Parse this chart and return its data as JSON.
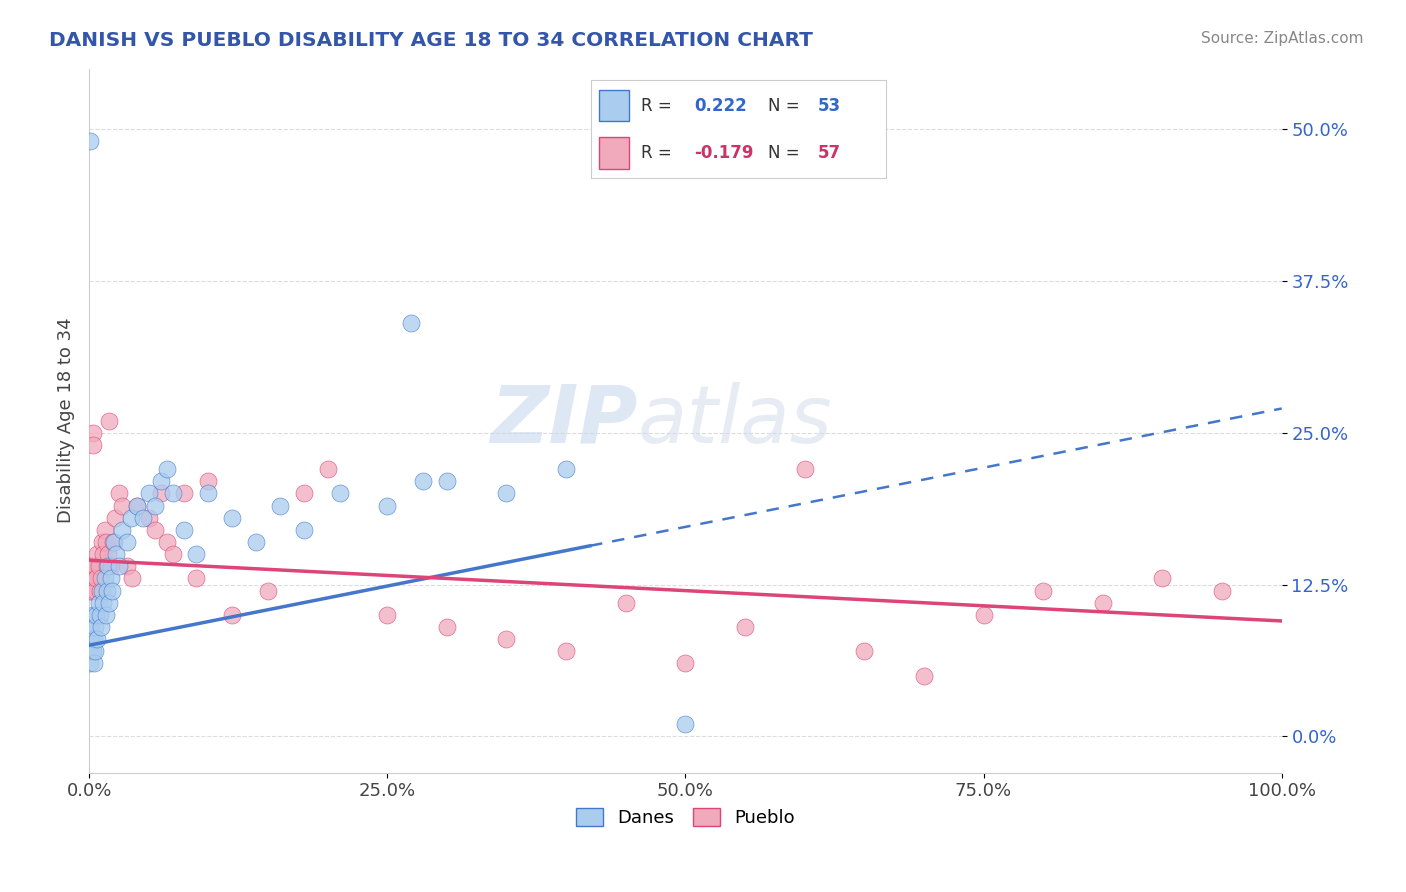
{
  "title": "DANISH VS PUEBLO DISABILITY AGE 18 TO 34 CORRELATION CHART",
  "source": "Source: ZipAtlas.com",
  "ylabel": "Disability Age 18 to 34",
  "r_danes": 0.222,
  "n_danes": 53,
  "r_pueblo": -0.179,
  "n_pueblo": 57,
  "color_danes": "#aaccee",
  "color_pueblo": "#f0aabb",
  "line_color_danes": "#4477cc",
  "line_color_pueblo": "#dd4477",
  "title_color": "#3355aa",
  "legend_r_color_danes": "#3366cc",
  "legend_r_color_pueblo": "#cc3366",
  "watermark_zip": "ZIP",
  "watermark_atlas": "atlas",
  "xlim": [
    0.0,
    1.0
  ],
  "ylim": [
    -0.03,
    0.55
  ],
  "yticks": [
    0.0,
    0.125,
    0.25,
    0.375,
    0.5
  ],
  "ytick_labels": [
    "0.0%",
    "12.5%",
    "25.0%",
    "37.5%",
    "50.0%"
  ],
  "xticks": [
    0.0,
    0.25,
    0.5,
    0.75,
    1.0
  ],
  "xtick_labels": [
    "0.0%",
    "25.0%",
    "50.0%",
    "75.0%",
    "100.0%"
  ],
  "grid_color": "#dddddd",
  "bg_color": "#ffffff",
  "danes_x": [
    0.001,
    0.001,
    0.001,
    0.002,
    0.002,
    0.003,
    0.003,
    0.004,
    0.004,
    0.005,
    0.005,
    0.006,
    0.007,
    0.008,
    0.009,
    0.01,
    0.011,
    0.012,
    0.013,
    0.014,
    0.015,
    0.016,
    0.017,
    0.018,
    0.019,
    0.021,
    0.023,
    0.025,
    0.028,
    0.032,
    0.035,
    0.04,
    0.045,
    0.05,
    0.055,
    0.06,
    0.065,
    0.07,
    0.08,
    0.09,
    0.1,
    0.12,
    0.14,
    0.16,
    0.18,
    0.21,
    0.25,
    0.3,
    0.35,
    0.4,
    0.5,
    0.27,
    0.28
  ],
  "danes_y": [
    0.49,
    0.06,
    0.07,
    0.08,
    0.09,
    0.07,
    0.1,
    0.06,
    0.08,
    0.09,
    0.07,
    0.1,
    0.08,
    0.11,
    0.1,
    0.09,
    0.12,
    0.11,
    0.13,
    0.1,
    0.12,
    0.14,
    0.11,
    0.13,
    0.12,
    0.16,
    0.15,
    0.14,
    0.17,
    0.16,
    0.18,
    0.19,
    0.18,
    0.2,
    0.19,
    0.21,
    0.22,
    0.2,
    0.17,
    0.15,
    0.2,
    0.18,
    0.16,
    0.19,
    0.17,
    0.2,
    0.19,
    0.21,
    0.2,
    0.22,
    0.01,
    0.34,
    0.21
  ],
  "pueblo_x": [
    0.001,
    0.001,
    0.001,
    0.002,
    0.002,
    0.003,
    0.003,
    0.004,
    0.005,
    0.005,
    0.006,
    0.007,
    0.008,
    0.009,
    0.01,
    0.011,
    0.012,
    0.013,
    0.014,
    0.015,
    0.016,
    0.017,
    0.018,
    0.02,
    0.022,
    0.025,
    0.028,
    0.032,
    0.036,
    0.04,
    0.05,
    0.055,
    0.06,
    0.065,
    0.07,
    0.08,
    0.09,
    0.1,
    0.12,
    0.15,
    0.18,
    0.2,
    0.25,
    0.3,
    0.35,
    0.4,
    0.45,
    0.5,
    0.55,
    0.6,
    0.65,
    0.7,
    0.75,
    0.8,
    0.85,
    0.9,
    0.95
  ],
  "pueblo_y": [
    0.14,
    0.13,
    0.12,
    0.14,
    0.12,
    0.25,
    0.24,
    0.13,
    0.14,
    0.12,
    0.13,
    0.15,
    0.14,
    0.12,
    0.13,
    0.16,
    0.15,
    0.17,
    0.16,
    0.14,
    0.15,
    0.26,
    0.14,
    0.16,
    0.18,
    0.2,
    0.19,
    0.14,
    0.13,
    0.19,
    0.18,
    0.17,
    0.2,
    0.16,
    0.15,
    0.2,
    0.13,
    0.21,
    0.1,
    0.12,
    0.2,
    0.22,
    0.1,
    0.09,
    0.08,
    0.07,
    0.11,
    0.06,
    0.09,
    0.22,
    0.07,
    0.05,
    0.1,
    0.12,
    0.11,
    0.13,
    0.12
  ],
  "trend_danes_x0": 0.0,
  "trend_danes_y0": 0.075,
  "trend_danes_x1": 1.0,
  "trend_danes_y1": 0.27,
  "trend_danes_solid_end": 0.42,
  "trend_pueblo_x0": 0.0,
  "trend_pueblo_y0": 0.145,
  "trend_pueblo_x1": 1.0,
  "trend_pueblo_y1": 0.095
}
